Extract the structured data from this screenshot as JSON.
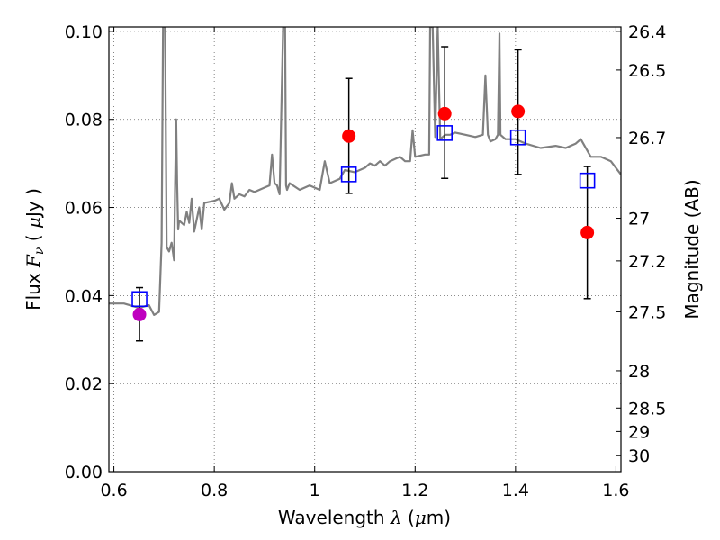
{
  "chart_data": {
    "type": "scatter",
    "xlabel": "Wavelength  λ (μm)",
    "ylabel": "Flux  F_ν  ( μJy )",
    "ylabel_right": "Magnitude (AB)",
    "xlim": [
      0.59,
      1.61
    ],
    "ylim": [
      0.0,
      0.101
    ],
    "grid": true,
    "x_ticks": [
      0.6,
      0.8,
      1.0,
      1.2,
      1.4,
      1.6
    ],
    "x_tick_labels": [
      "0.6",
      "0.8",
      "1",
      "1.2",
      "1.4",
      "1.6"
    ],
    "y_ticks": [
      0.0,
      0.02,
      0.04,
      0.06,
      0.08,
      0.1
    ],
    "y_tick_labels": [
      "0.00",
      "0.02",
      "0.04",
      "0.06",
      "0.08",
      "0.10"
    ],
    "right_ticks": [
      {
        "label": "26.4",
        "mag": 26.4
      },
      {
        "label": "26.5",
        "mag": 26.5
      },
      {
        "label": "26.7",
        "mag": 26.7
      },
      {
        "label": "27",
        "mag": 27.0
      },
      {
        "label": "27.2",
        "mag": 27.2
      },
      {
        "label": "27.5",
        "mag": 27.5
      },
      {
        "label": "28",
        "mag": 28.0
      },
      {
        "label": "28.5",
        "mag": 28.5
      },
      {
        "label": "29",
        "mag": 29.0
      },
      {
        "label": "30",
        "mag": 30.0
      }
    ],
    "series": [
      {
        "kind": "spectrum",
        "color": "#808080",
        "x": [
          0.59,
          0.62,
          0.65,
          0.67,
          0.68,
          0.69,
          0.695,
          0.698,
          0.7,
          0.702,
          0.705,
          0.71,
          0.715,
          0.72,
          0.722,
          0.724,
          0.726,
          0.728,
          0.73,
          0.74,
          0.745,
          0.75,
          0.755,
          0.76,
          0.77,
          0.775,
          0.78,
          0.8,
          0.81,
          0.82,
          0.83,
          0.835,
          0.84,
          0.85,
          0.86,
          0.87,
          0.88,
          0.9,
          0.91,
          0.915,
          0.92,
          0.925,
          0.93,
          0.937,
          0.939,
          0.941,
          0.943,
          0.945,
          0.95,
          0.97,
          0.99,
          1.01,
          1.02,
          1.03,
          1.05,
          1.06,
          1.08,
          1.1,
          1.11,
          1.12,
          1.13,
          1.14,
          1.15,
          1.17,
          1.18,
          1.19,
          1.195,
          1.2,
          1.22,
          1.228,
          1.23,
          1.233,
          1.235,
          1.24,
          1.245,
          1.25,
          1.26,
          1.27,
          1.28,
          1.3,
          1.32,
          1.335,
          1.34,
          1.345,
          1.35,
          1.36,
          1.365,
          1.368,
          1.37,
          1.38,
          1.4,
          1.42,
          1.45,
          1.48,
          1.5,
          1.52,
          1.53,
          1.55,
          1.57,
          1.59,
          1.61
        ],
        "y": [
          0.0382,
          0.0382,
          0.0372,
          0.0378,
          0.0356,
          0.0363,
          0.052,
          0.101,
          0.101,
          0.101,
          0.051,
          0.05,
          0.052,
          0.048,
          0.065,
          0.08,
          0.065,
          0.055,
          0.057,
          0.056,
          0.059,
          0.0565,
          0.062,
          0.0545,
          0.06,
          0.055,
          0.061,
          0.0615,
          0.062,
          0.0595,
          0.061,
          0.0655,
          0.062,
          0.063,
          0.0625,
          0.064,
          0.0635,
          0.0645,
          0.065,
          0.072,
          0.0655,
          0.065,
          0.063,
          0.101,
          0.101,
          0.101,
          0.065,
          0.064,
          0.0655,
          0.064,
          0.065,
          0.064,
          0.0705,
          0.0655,
          0.0665,
          0.0685,
          0.068,
          0.069,
          0.07,
          0.0695,
          0.0705,
          0.0695,
          0.0705,
          0.0715,
          0.0705,
          0.0705,
          0.0775,
          0.0715,
          0.072,
          0.072,
          0.101,
          0.101,
          0.101,
          0.076,
          0.101,
          0.0755,
          0.0765,
          0.0765,
          0.077,
          0.0765,
          0.076,
          0.0765,
          0.09,
          0.0765,
          0.075,
          0.0755,
          0.0765,
          0.0995,
          0.0765,
          0.0755,
          0.0755,
          0.0745,
          0.0735,
          0.074,
          0.0735,
          0.0745,
          0.0755,
          0.0715,
          0.0715,
          0.0705,
          0.0675
        ]
      },
      {
        "kind": "model_photometry",
        "marker": "open-square",
        "color": "#0000ff",
        "x": [
          0.651,
          1.068,
          1.259,
          1.405,
          1.543
        ],
        "y": [
          0.0392,
          0.0675,
          0.0769,
          0.0759,
          0.0661
        ]
      },
      {
        "kind": "observed_photometry",
        "marker": "filled-circle",
        "x": [
          0.651,
          1.068,
          1.259,
          1.405,
          1.543
        ],
        "y": [
          0.0357,
          0.0762,
          0.0813,
          0.0818,
          0.0543
        ],
        "yerr_low": [
          0.0297,
          0.0632,
          0.0666,
          0.0675,
          0.0393
        ],
        "yerr_high": [
          0.0418,
          0.0893,
          0.0965,
          0.0958,
          0.0693
        ],
        "colors": [
          "#bf00bf",
          "#ff0000",
          "#ff0000",
          "#ff0000",
          "#ff0000"
        ]
      }
    ]
  }
}
